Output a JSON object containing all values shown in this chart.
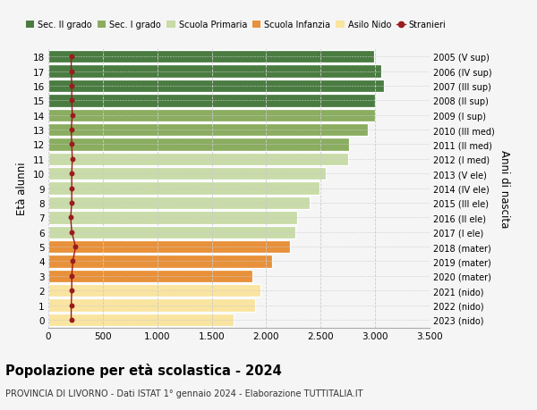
{
  "ages": [
    0,
    1,
    2,
    3,
    4,
    5,
    6,
    7,
    8,
    9,
    10,
    11,
    12,
    13,
    14,
    15,
    16,
    17,
    18
  ],
  "bar_values": [
    1700,
    1900,
    1950,
    1870,
    2050,
    2220,
    2270,
    2280,
    2400,
    2490,
    2550,
    2750,
    2760,
    2930,
    3000,
    3000,
    3080,
    3060,
    2990
  ],
  "stranieri_values": [
    210,
    210,
    215,
    215,
    225,
    250,
    215,
    205,
    215,
    215,
    215,
    220,
    215,
    210,
    220,
    215,
    215,
    210,
    210
  ],
  "bar_colors": [
    "#f9e4a0",
    "#f9e4a0",
    "#f9e4a0",
    "#e8913a",
    "#e8913a",
    "#e8913a",
    "#c8dba8",
    "#c8dba8",
    "#c8dba8",
    "#c8dba8",
    "#c8dba8",
    "#c8dba8",
    "#8aad60",
    "#8aad60",
    "#8aad60",
    "#4a7c41",
    "#4a7c41",
    "#4a7c41",
    "#4a7c41"
  ],
  "right_labels": [
    "2023 (nido)",
    "2022 (nido)",
    "2021 (nido)",
    "2020 (mater)",
    "2019 (mater)",
    "2018 (mater)",
    "2017 (I ele)",
    "2016 (II ele)",
    "2015 (III ele)",
    "2014 (IV ele)",
    "2013 (V ele)",
    "2012 (I med)",
    "2011 (II med)",
    "2010 (III med)",
    "2009 (I sup)",
    "2008 (II sup)",
    "2007 (III sup)",
    "2006 (IV sup)",
    "2005 (V sup)"
  ],
  "legend_labels": [
    "Sec. II grado",
    "Sec. I grado",
    "Scuola Primaria",
    "Scuola Infanzia",
    "Asilo Nido",
    "Stranieri"
  ],
  "legend_colors": [
    "#4a7c41",
    "#8aad60",
    "#c8dba8",
    "#e8913a",
    "#f9e4a0",
    "#9b1c1c"
  ],
  "ylabel": "Età alunni",
  "right_ylabel": "Anni di nascita",
  "title": "Popolazione per età scolastica - 2024",
  "subtitle": "PROVINCIA DI LIVORNO - Dati ISTAT 1° gennaio 2024 - Elaborazione TUTTITALIA.IT",
  "xlim": [
    0,
    3500
  ],
  "xticks": [
    0,
    500,
    1000,
    1500,
    2000,
    2500,
    3000,
    3500
  ],
  "background_color": "#f5f5f5",
  "grid_color": "#cccccc",
  "stranieri_color": "#9b1c1c",
  "bar_height": 0.88
}
